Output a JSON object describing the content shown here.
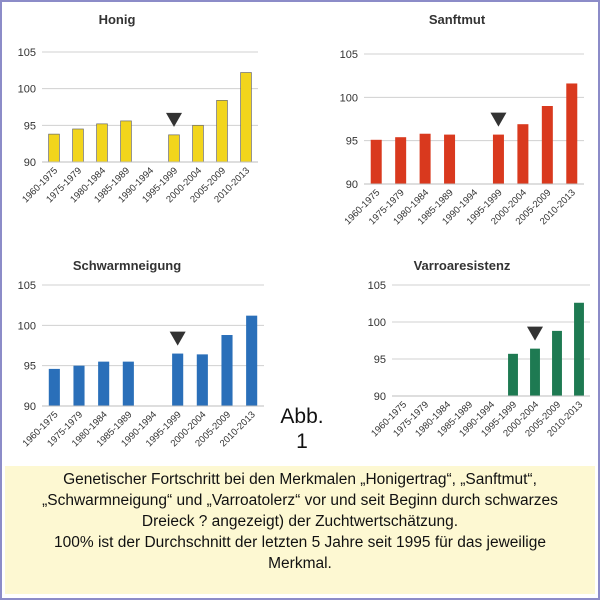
{
  "figure_label": {
    "line1": "Abb.",
    "line2": "1"
  },
  "caption": {
    "lines": [
      "Genetischer Fortschritt bei den Merkmalen „Honigertrag“, „Sanftmut“,",
      "„Schwarmneigung“ und „Varroatolerz“ vor und seit Beginn durch schwarzes",
      "Dreieck ?    angezeigt)  der Zuchtwertschätzung.",
      "100% ist der Durchschnitt der letzten 5 Jahre seit 1995 für das jeweilige",
      "Merkmal."
    ]
  },
  "chart_data": [
    {
      "type": "bar",
      "title": "Honig",
      "color": "#f2d51c",
      "categories": [
        "1960-1975",
        "1975-1979",
        "1980-1984",
        "1985-1989",
        "1990-1994",
        "1995-1999",
        "2000-2004",
        "2005-2009",
        "2010-2013"
      ],
      "values": [
        93.8,
        94.5,
        95.2,
        95.6,
        null,
        93.7,
        95.0,
        98.4,
        102.2
      ],
      "ylim": [
        90,
        105
      ],
      "yticks": [
        90,
        95,
        100,
        105
      ],
      "marker_category": "1995-1999",
      "grid": true
    },
    {
      "type": "bar",
      "title": "Sanftmut",
      "color": "#d9391e",
      "categories": [
        "1960-1975",
        "1975-1979",
        "1980-1984",
        "1985-1989",
        "1990-1994",
        "1995-1999",
        "2000-2004",
        "2005-2009",
        "2010-2013"
      ],
      "values": [
        95.1,
        95.4,
        95.8,
        95.7,
        null,
        95.7,
        96.9,
        99.0,
        101.6
      ],
      "ylim": [
        90,
        105
      ],
      "yticks": [
        90,
        95,
        100,
        105
      ],
      "marker_category": "1995-1999",
      "grid": true
    },
    {
      "type": "bar",
      "title": "Schwarmneigung",
      "color": "#2a6fb9",
      "categories": [
        "1960-1975",
        "1975-1979",
        "1980-1984",
        "1985-1989",
        "1990-1994",
        "1995-1999",
        "2000-2004",
        "2005-2009",
        "2010-2013"
      ],
      "values": [
        94.6,
        95.0,
        95.5,
        95.5,
        null,
        96.5,
        96.4,
        98.8,
        101.2
      ],
      "ylim": [
        90,
        105
      ],
      "yticks": [
        90,
        95,
        100,
        105
      ],
      "marker_category": "1995-1999",
      "grid": true
    },
    {
      "type": "bar",
      "title": "Varroaresistenz",
      "color": "#1e7a52",
      "categories": [
        "1960-1975",
        "1975-1979",
        "1980-1984",
        "1985-1989",
        "1990-1994",
        "1995-1999",
        "2000-2004",
        "2005-2009",
        "2010-2013"
      ],
      "values": [
        null,
        null,
        null,
        null,
        null,
        95.7,
        96.4,
        98.8,
        102.6
      ],
      "ylim": [
        90,
        105
      ],
      "yticks": [
        90,
        95,
        100,
        105
      ],
      "marker_category": "2000-2004",
      "grid": true
    }
  ]
}
